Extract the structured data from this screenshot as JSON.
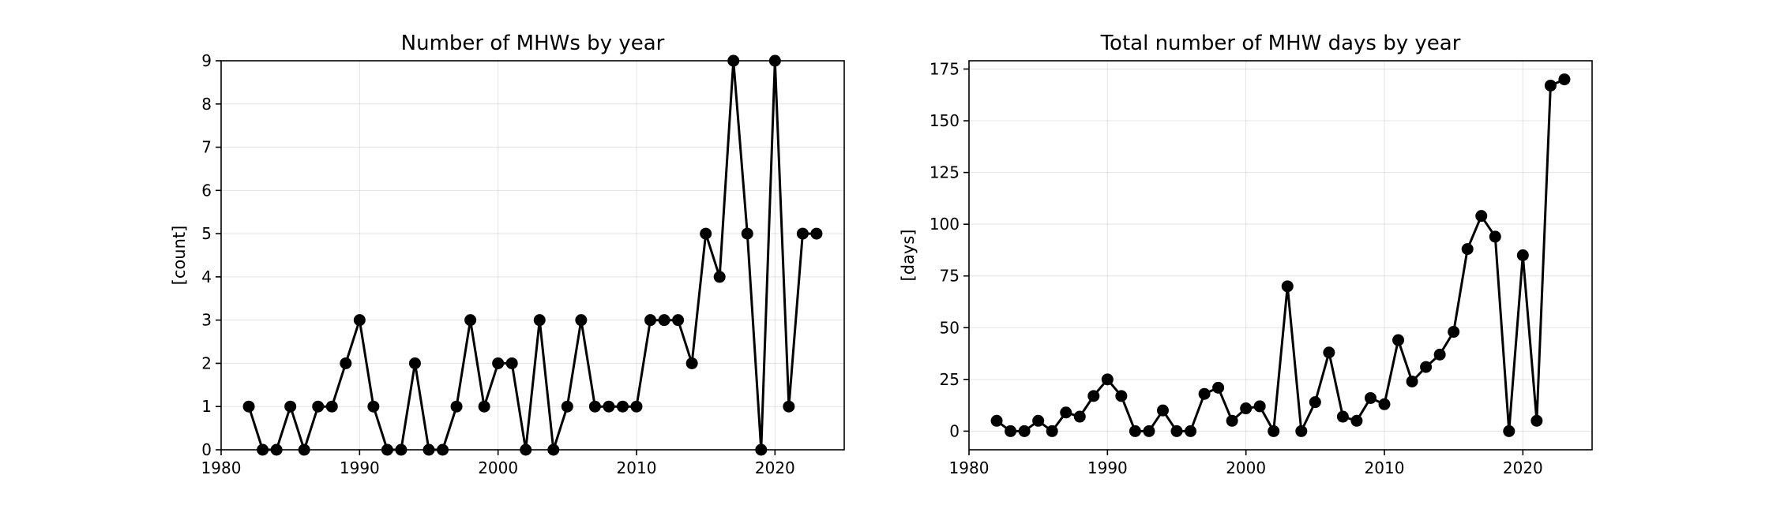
{
  "chart_data": [
    {
      "type": "line",
      "title": "Number of MHWs by year",
      "xlabel": "",
      "ylabel": "[count]",
      "xlim": [
        1980,
        2025
      ],
      "ylim": [
        0,
        9
      ],
      "xticks": [
        1980,
        1990,
        2000,
        2010,
        2020
      ],
      "yticks": [
        0,
        1,
        2,
        3,
        4,
        5,
        6,
        7,
        8,
        9
      ],
      "grid": true,
      "color": "#000000",
      "marker": "circle",
      "x": [
        1982,
        1983,
        1984,
        1985,
        1986,
        1987,
        1988,
        1989,
        1990,
        1991,
        1992,
        1993,
        1994,
        1995,
        1996,
        1997,
        1998,
        1999,
        2000,
        2001,
        2002,
        2003,
        2004,
        2005,
        2006,
        2007,
        2008,
        2009,
        2010,
        2011,
        2012,
        2013,
        2014,
        2015,
        2016,
        2017,
        2018,
        2019,
        2020,
        2021,
        2022,
        2023
      ],
      "values": [
        1,
        0,
        0,
        1,
        0,
        1,
        1,
        2,
        3,
        1,
        0,
        0,
        2,
        0,
        0,
        1,
        3,
        1,
        2,
        2,
        0,
        3,
        0,
        1,
        3,
        1,
        1,
        1,
        1,
        3,
        3,
        3,
        2,
        5,
        4,
        9,
        5,
        0,
        9,
        1,
        5,
        5
      ]
    },
    {
      "type": "line",
      "title": "Total number of MHW days by year",
      "xlabel": "",
      "ylabel": "[days]",
      "xlim": [
        1980,
        2025
      ],
      "ylim": [
        -9,
        179
      ],
      "xticks": [
        1980,
        1990,
        2000,
        2010,
        2020
      ],
      "yticks": [
        0,
        25,
        50,
        75,
        100,
        125,
        150,
        175
      ],
      "grid": true,
      "color": "#000000",
      "marker": "circle",
      "x": [
        1982,
        1983,
        1984,
        1985,
        1986,
        1987,
        1988,
        1989,
        1990,
        1991,
        1992,
        1993,
        1994,
        1995,
        1996,
        1997,
        1998,
        1999,
        2000,
        2001,
        2002,
        2003,
        2004,
        2005,
        2006,
        2007,
        2008,
        2009,
        2010,
        2011,
        2012,
        2013,
        2014,
        2015,
        2016,
        2017,
        2018,
        2019,
        2020,
        2021,
        2022,
        2023
      ],
      "values": [
        5,
        0,
        0,
        5,
        0,
        9,
        7,
        17,
        25,
        17,
        0,
        0,
        10,
        0,
        0,
        18,
        21,
        5,
        11,
        12,
        0,
        70,
        0,
        14,
        38,
        7,
        5,
        16,
        13,
        44,
        24,
        31,
        37,
        48,
        88,
        104,
        94,
        0,
        85,
        5,
        167,
        170
      ]
    }
  ]
}
